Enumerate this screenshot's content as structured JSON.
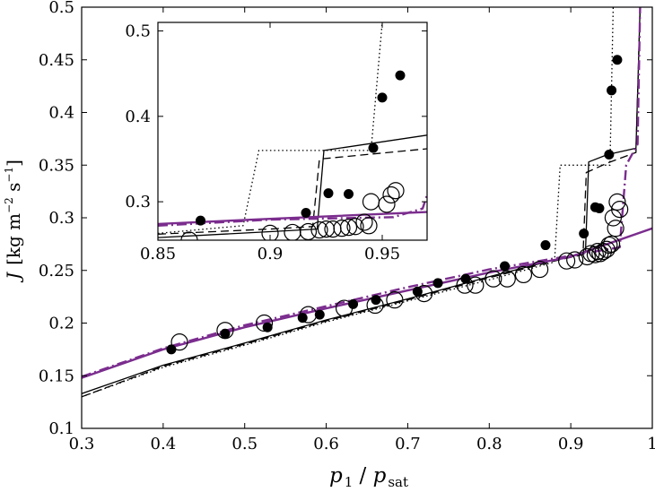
{
  "chart_data": [
    {
      "panel": "main",
      "type": "scatter",
      "xlabel": {
        "p": "p",
        "sub1": "1",
        "slash": " / ",
        "p2": "p",
        "sub2": "sat"
      },
      "ylabel": {
        "sym": "J",
        "unit": "[kg m",
        "exp1": "−2",
        "s": " s",
        "exp2": "−1",
        "close": "]"
      },
      "xlim": [
        0.3,
        1.0
      ],
      "ylim": [
        0.1,
        0.5
      ],
      "xticks": [
        "0.3",
        "0.4",
        "0.5",
        "0.6",
        "0.7",
        "0.8",
        "0.9",
        "1"
      ],
      "yticks": [
        "0.1",
        "0.15",
        "0.2",
        "0.25",
        "0.3",
        "0.35",
        "0.4",
        "0.45",
        "0.5"
      ],
      "grid": false,
      "legend": "none",
      "series": [
        {
          "marker": "filled-circle",
          "points": [
            [
              0.41,
              0.175
            ],
            [
              0.476,
              0.19
            ],
            [
              0.528,
              0.196
            ],
            [
              0.571,
              0.205
            ],
            [
              0.592,
              0.208
            ],
            [
              0.633,
              0.218
            ],
            [
              0.661,
              0.222
            ],
            [
              0.712,
              0.23
            ],
            [
              0.737,
              0.238
            ],
            [
              0.771,
              0.242
            ],
            [
              0.819,
              0.254
            ],
            [
              0.869,
              0.274
            ],
            [
              0.916,
              0.285
            ],
            [
              0.93,
              0.31
            ],
            [
              0.935,
              0.309
            ],
            [
              0.947,
              0.36
            ],
            [
              0.95,
              0.421
            ],
            [
              0.957,
              0.45
            ]
          ]
        },
        {
          "marker": "open-circle",
          "points": [
            [
              0.42,
              0.182
            ],
            [
              0.476,
              0.193
            ],
            [
              0.524,
              0.2
            ],
            [
              0.578,
              0.208
            ],
            [
              0.622,
              0.214
            ],
            [
              0.66,
              0.217
            ],
            [
              0.684,
              0.222
            ],
            [
              0.72,
              0.228
            ],
            [
              0.77,
              0.236
            ],
            [
              0.783,
              0.236
            ],
            [
              0.805,
              0.242
            ],
            [
              0.822,
              0.242
            ],
            [
              0.842,
              0.246
            ],
            [
              0.862,
              0.251
            ],
            [
              0.895,
              0.259
            ],
            [
              0.905,
              0.26
            ],
            [
              0.92,
              0.263
            ],
            [
              0.925,
              0.266
            ],
            [
              0.93,
              0.265
            ],
            [
              0.933,
              0.268
            ],
            [
              0.936,
              0.266
            ],
            [
              0.94,
              0.268
            ],
            [
              0.944,
              0.27
            ],
            [
              0.947,
              0.274
            ],
            [
              0.95,
              0.275
            ],
            [
              0.952,
              0.3
            ],
            [
              0.955,
              0.29
            ],
            [
              0.957,
              0.315
            ],
            [
              0.96,
              0.308
            ]
          ]
        },
        {
          "style": "solid-black",
          "points": [
            [
              0.3,
              0.133
            ],
            [
              0.4,
              0.16
            ],
            [
              0.5,
              0.181
            ],
            [
              0.6,
              0.203
            ],
            [
              0.7,
              0.223
            ],
            [
              0.8,
              0.244
            ],
            [
              0.88,
              0.26
            ],
            [
              0.918,
              0.267
            ],
            [
              0.922,
              0.353
            ],
            [
              0.945,
              0.36
            ],
            [
              0.98,
              0.366
            ],
            [
              0.985,
              0.5
            ]
          ]
        },
        {
          "style": "dotted-black",
          "points": [
            [
              0.3,
              0.13
            ],
            [
              0.4,
              0.158
            ],
            [
              0.5,
              0.179
            ],
            [
              0.6,
              0.201
            ],
            [
              0.7,
              0.221
            ],
            [
              0.8,
              0.241
            ],
            [
              0.88,
              0.258
            ],
            [
              0.887,
              0.35
            ],
            [
              0.948,
              0.35
            ],
            [
              0.952,
              0.5
            ]
          ]
        },
        {
          "style": "dashed-black",
          "points": [
            [
              0.3,
              0.13
            ],
            [
              0.4,
              0.159
            ],
            [
              0.5,
              0.18
            ],
            [
              0.6,
              0.202
            ],
            [
              0.7,
              0.222
            ],
            [
              0.8,
              0.243
            ],
            [
              0.88,
              0.259
            ],
            [
              0.915,
              0.265
            ],
            [
              0.919,
              0.343
            ],
            [
              0.945,
              0.352
            ],
            [
              0.98,
              0.362
            ],
            [
              0.985,
              0.5
            ]
          ]
        },
        {
          "style": "solid-purple",
          "color": "#7b2d8e",
          "points": [
            [
              0.3,
              0.148
            ],
            [
              0.4,
              0.175
            ],
            [
              0.5,
              0.196
            ],
            [
              0.6,
              0.214
            ],
            [
              0.7,
              0.231
            ],
            [
              0.8,
              0.248
            ],
            [
              0.9,
              0.263
            ],
            [
              1.0,
              0.29
            ]
          ]
        },
        {
          "style": "dashdot-purple",
          "color": "#7b2d8e",
          "points": [
            [
              0.3,
              0.149
            ],
            [
              0.4,
              0.176
            ],
            [
              0.5,
              0.198
            ],
            [
              0.6,
              0.216
            ],
            [
              0.7,
              0.234
            ],
            [
              0.8,
              0.251
            ],
            [
              0.9,
              0.264
            ],
            [
              0.96,
              0.272
            ],
            [
              0.968,
              0.35
            ],
            [
              0.982,
              0.37
            ],
            [
              0.985,
              0.5
            ]
          ]
        }
      ]
    },
    {
      "panel": "inset",
      "type": "scatter",
      "xlim": [
        0.85,
        0.97
      ],
      "ylim": [
        0.255,
        0.51
      ],
      "xticks": [
        "0.85",
        "0.9",
        "0.95"
      ],
      "yticks": [
        "0.3",
        "0.4",
        "0.5"
      ],
      "grid": false,
      "legend": "none",
      "series": [
        {
          "marker": "filled-circle",
          "points": [
            [
              0.869,
              0.278
            ],
            [
              0.916,
              0.287
            ],
            [
              0.926,
              0.31
            ],
            [
              0.935,
              0.309
            ],
            [
              0.946,
              0.363
            ],
            [
              0.95,
              0.422
            ],
            [
              0.958,
              0.448
            ]
          ]
        },
        {
          "marker": "open-circle",
          "points": [
            [
              0.864,
              0.255
            ],
            [
              0.9,
              0.263
            ],
            [
              0.91,
              0.264
            ],
            [
              0.917,
              0.265
            ],
            [
              0.922,
              0.267
            ],
            [
              0.925,
              0.268
            ],
            [
              0.928,
              0.268
            ],
            [
              0.932,
              0.269
            ],
            [
              0.935,
              0.27
            ],
            [
              0.938,
              0.271
            ],
            [
              0.942,
              0.276
            ],
            [
              0.944,
              0.272
            ],
            [
              0.945,
              0.3
            ],
            [
              0.952,
              0.297
            ],
            [
              0.954,
              0.308
            ],
            [
              0.956,
              0.313
            ]
          ]
        },
        {
          "style": "solid-black",
          "points": [
            [
              0.85,
              0.258
            ],
            [
              0.9,
              0.265
            ],
            [
              0.921,
              0.268
            ],
            [
              0.924,
              0.36
            ],
            [
              0.97,
              0.378
            ]
          ]
        },
        {
          "style": "dotted-black",
          "points": [
            [
              0.85,
              0.263
            ],
            [
              0.888,
              0.272
            ],
            [
              0.895,
              0.36
            ],
            [
              0.945,
              0.36
            ],
            [
              0.95,
              0.51
            ]
          ]
        },
        {
          "style": "dashed-black",
          "points": [
            [
              0.85,
              0.262
            ],
            [
              0.9,
              0.268
            ],
            [
              0.919,
              0.271
            ],
            [
              0.922,
              0.35
            ],
            [
              0.97,
              0.362
            ]
          ]
        },
        {
          "style": "solid-purple",
          "color": "#7b2d8e",
          "points": [
            [
              0.85,
              0.274
            ],
            [
              0.9,
              0.28
            ],
            [
              0.97,
              0.288
            ]
          ]
        },
        {
          "style": "dashdot-purple",
          "color": "#7b2d8e",
          "points": [
            [
              0.85,
              0.272
            ],
            [
              0.9,
              0.279
            ],
            [
              0.955,
              0.282
            ],
            [
              0.968,
              0.292
            ],
            [
              0.97,
              0.308
            ]
          ]
        }
      ]
    }
  ]
}
